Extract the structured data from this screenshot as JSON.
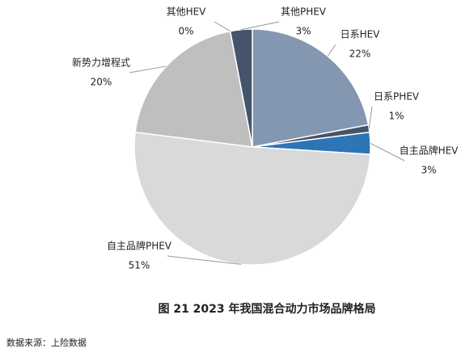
{
  "chart_data": {
    "type": "pie",
    "title": "图 21 2023 年我国混合动力市场品牌格局",
    "source": "数据来源：上险数据",
    "categories": [
      "日系HEV",
      "日系PHEV",
      "自主品牌HEV",
      "自主品牌PHEV",
      "新势力增程式",
      "其他HEV",
      "其他PHEV"
    ],
    "values": [
      22,
      1,
      3,
      51,
      20,
      0,
      3
    ],
    "value_labels": [
      "22%",
      "1%",
      "3%",
      "51%",
      "20%",
      "0%",
      "3%"
    ],
    "colors": [
      "#8497b0",
      "#44546a",
      "#2e75b6",
      "#d9d9d9",
      "#bfbfbf",
      "#222a35",
      "#44546a"
    ]
  }
}
